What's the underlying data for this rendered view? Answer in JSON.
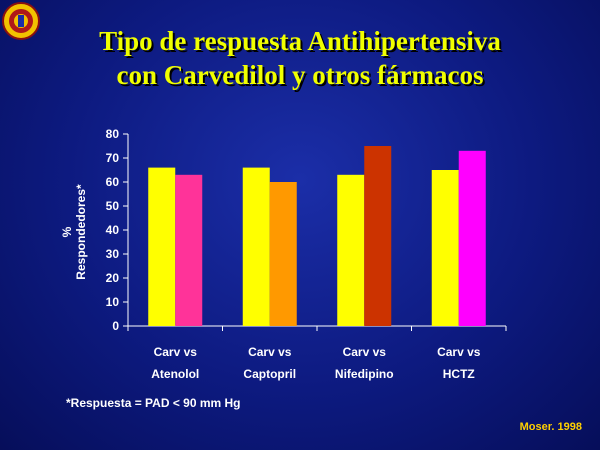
{
  "slide": {
    "title_line1": "Tipo de respuesta Antihipertensiva",
    "title_line2": "con Carvedilol y otros fármacos",
    "footnote": "*Respuesta = PAD < 90 mm Hg",
    "source": "Moser. 1998"
  },
  "chart_data": {
    "type": "bar",
    "ylabel_line1": "%",
    "ylabel_line2": "Respondedores*",
    "ylim": [
      0,
      80
    ],
    "yticks": [
      0,
      10,
      20,
      30,
      40,
      50,
      60,
      70,
      80
    ],
    "categories": [
      {
        "line1": "Carv vs",
        "line2": "Atenolol"
      },
      {
        "line1": "Carv vs",
        "line2": "Captopril"
      },
      {
        "line1": "Carv vs",
        "line2": "Nifedipino"
      },
      {
        "line1": "Carv vs",
        "line2": "HCTZ"
      }
    ],
    "groups": [
      {
        "bars": [
          {
            "value": 66,
            "color": "#ffff00"
          },
          {
            "value": 63,
            "color": "#ff3399"
          }
        ]
      },
      {
        "bars": [
          {
            "value": 66,
            "color": "#ffff00"
          },
          {
            "value": 60,
            "color": "#ff9900"
          }
        ]
      },
      {
        "bars": [
          {
            "value": 63,
            "color": "#ffff00"
          },
          {
            "value": 75,
            "color": "#cc3300"
          }
        ]
      },
      {
        "bars": [
          {
            "value": 65,
            "color": "#ffff00"
          },
          {
            "value": 73,
            "color": "#ff00ff"
          }
        ]
      }
    ]
  }
}
